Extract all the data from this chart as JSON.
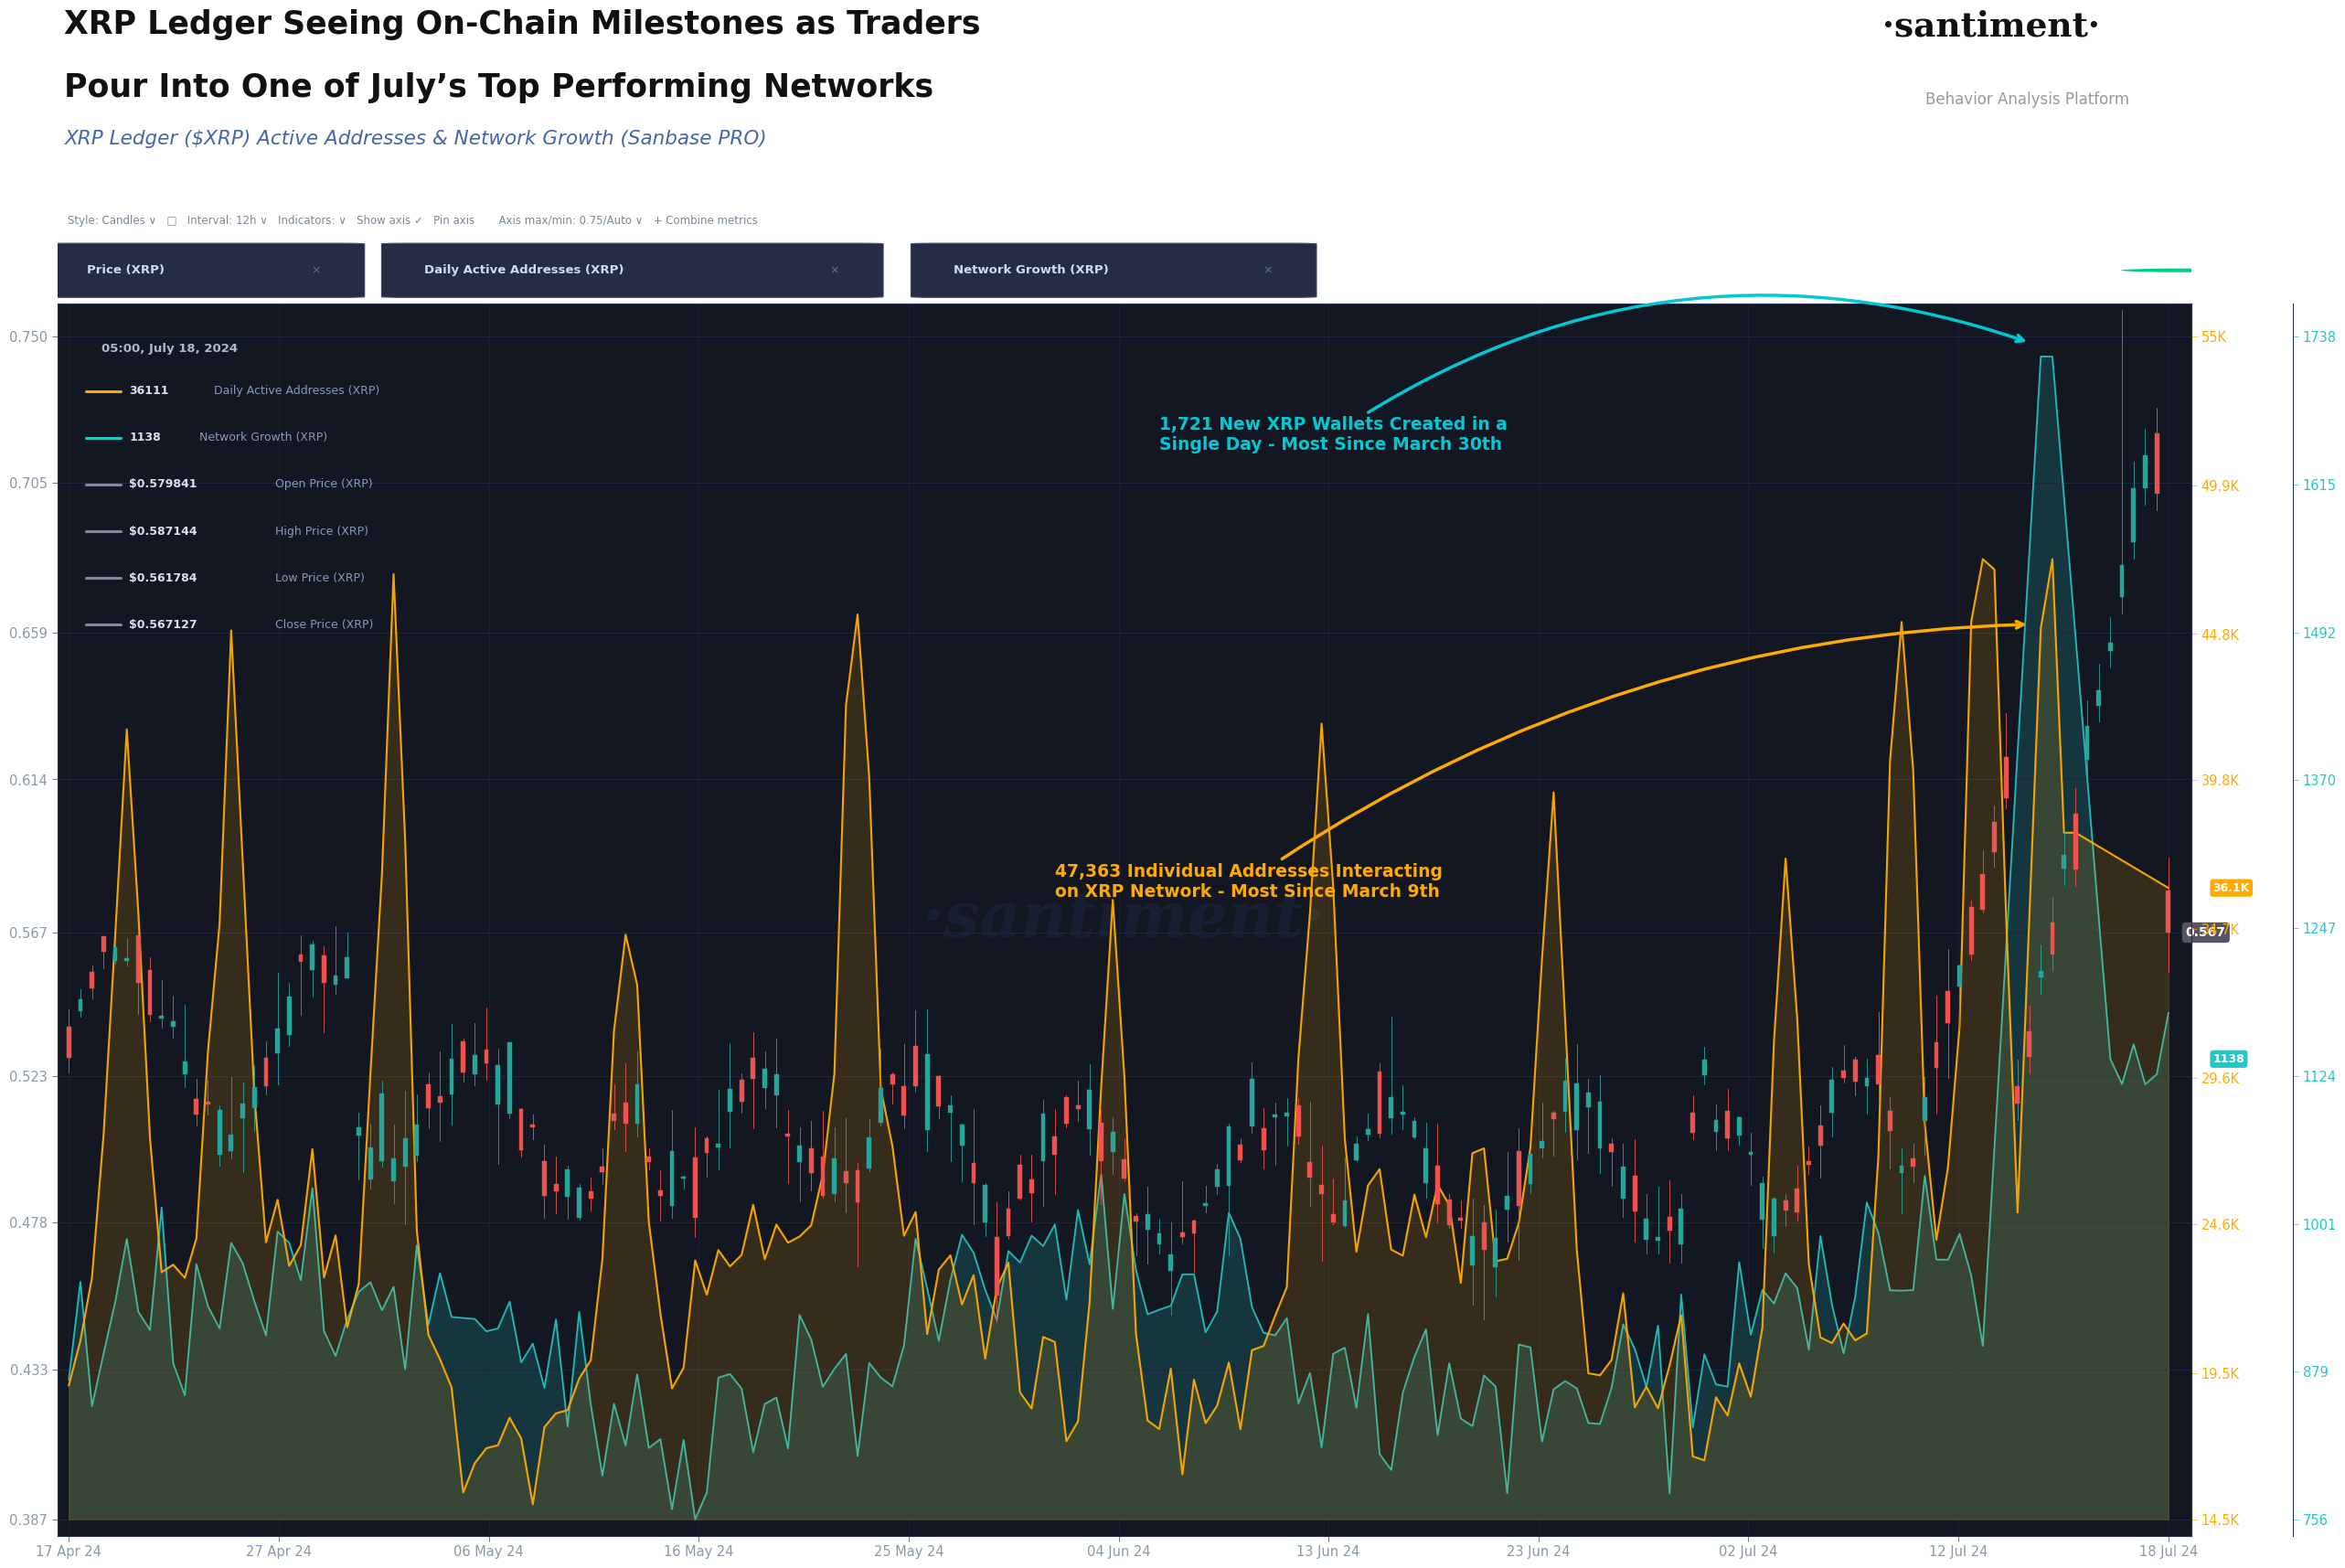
{
  "title_line1": "XRP Ledger Seeing On-Chain Milestones as Traders",
  "title_line2": "Pour Into One of July’s Top Performing Networks",
  "subtitle": "XRP Ledger ($XRP) Active Addresses & Network Growth (Sanbase PRO)",
  "santiment_label": "·santiment·",
  "santiment_sub": "Behavior Analysis Platform",
  "bg_outer": "#ffffff",
  "bg_chart": "#131722",
  "bg_toolbar": "#1a2035",
  "bg_legend": "#1e2638",
  "annotation1": "1,721 New XRP Wallets Created in a\nSingle Day - Most Since March 30th",
  "annotation2": "47,363 Individual Addresses Interacting\non XRP Network - Most Since March 9th",
  "annotation1_color": "#00c8d4",
  "annotation2_color": "#ffaa00",
  "x_labels": [
    "17 Apr 24",
    "27 Apr 24",
    "06 May 24",
    "16 May 24",
    "25 May 24",
    "04 Jun 24",
    "13 Jun 24",
    "23 Jun 24",
    "02 Jul 24",
    "12 Jul 24",
    "18 Jul 24"
  ],
  "y_left_ticks": [
    0.387,
    0.433,
    0.478,
    0.523,
    0.567,
    0.614,
    0.659,
    0.705,
    0.75
  ],
  "y_right1_ticks_k": [
    14.5,
    19.5,
    24.6,
    29.6,
    34.7,
    39.8,
    44.8,
    49.9,
    55.0
  ],
  "y_right1_labels": [
    "14.5K",
    "19.5K",
    "24.6K",
    "29.6K",
    "34.7K",
    "39.8K",
    "44.8K",
    "49.9K",
    "55K"
  ],
  "y_right2_ticks": [
    756,
    879,
    1001,
    1124,
    1247,
    1370,
    1492,
    1615,
    1738
  ],
  "y_right2_labels": [
    "756",
    "879",
    "1001",
    "1124",
    "1247",
    "1370",
    "1492",
    "1615",
    "1738"
  ],
  "price_color_up": "#26a69a",
  "price_color_down": "#ef5350",
  "active_addr_color": "#ffaa00",
  "network_growth_color": "#26c6c6",
  "legend_items": [
    {
      "label": "36111",
      "sublabel": " Daily Active Addresses (XRP)",
      "color": "#ffaa00"
    },
    {
      "label": "1138",
      "sublabel": " Network Growth (XRP)",
      "color": "#26c6c6"
    },
    {
      "label": "$0.579841",
      "sublabel": " Open Price (XRP)",
      "color": "#888899"
    },
    {
      "label": "$0.587144",
      "sublabel": " High Price (XRP)",
      "color": "#888899"
    },
    {
      "label": "$0.561784",
      "sublabel": " Low Price (XRP)",
      "color": "#888899"
    },
    {
      "label": "$0.567127",
      "sublabel": " Close Price (XRP)",
      "color": "#888899"
    }
  ],
  "watermark": "·santiment·",
  "current_price": "0.567",
  "current_active": "36.1K",
  "current_network": "1138",
  "tab_labels": [
    "Price (XRP)",
    "Daily Active Addresses (XRP)",
    "Network Growth (XRP)"
  ],
  "tab_colors": [
    "#ffaa00",
    "#26c6c6",
    "#26c6c6"
  ],
  "style_bar_text": "Style: Candles ∨   □   Interval: 12h ∨   Indicators: ∨   Show axis ✓   Pin axis       Axis max/min: 0.75/Auto ∨   + Combine metrics"
}
